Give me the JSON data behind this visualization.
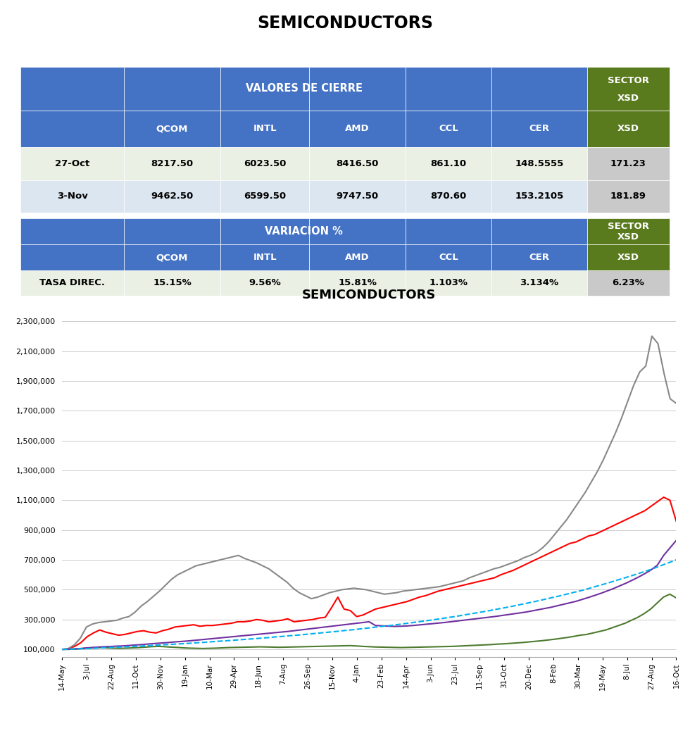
{
  "title_main": "SEMICONDUCTORS",
  "table1_header_label": "VALORES DE CIERRE",
  "table1_sector_label": "SECTOR",
  "table1_sector_sub": "XSD",
  "table2_header_label": "VARIACION %",
  "table2_sector_label": "SECTOR",
  "table2_sector_sub": "XSD",
  "table1_rows": [
    [
      "27-Oct",
      "8217.50",
      "6023.50",
      "8416.50",
      "861.10",
      "148.5555",
      "171.23"
    ],
    [
      "3-Nov",
      "9462.50",
      "6599.50",
      "9747.50",
      "870.60",
      "153.2105",
      "181.89"
    ]
  ],
  "table2_rows": [
    [
      "TASA DIREC.",
      "15.15%",
      "9.56%",
      "15.81%",
      "1.103%",
      "3.134%",
      "6.23%"
    ]
  ],
  "col_headers": [
    "",
    "QCOM",
    "INTL",
    "AMD",
    "CCL",
    "CER",
    "XSD"
  ],
  "blue_color": "#4472C4",
  "green_color": "#5A7A1E",
  "light_green_row": "#EAF0E3",
  "light_blue_row": "#DCE6F1",
  "gray_sector": "#C9C9C9",
  "white": "#FFFFFF",
  "chart_title": "SEMICONDUCTORS",
  "x_labels": [
    "14-May",
    "3-Jul",
    "22-Aug",
    "11-Oct",
    "30-Nov",
    "19-Jan",
    "10-Mar",
    "29-Apr",
    "18-Jun",
    "7-Aug",
    "26-Sep",
    "15-Nov",
    "4-Jan",
    "23-Feb",
    "14-Apr",
    "3-Jun",
    "23-Jul",
    "11-Sep",
    "31-Oct",
    "20-Dec",
    "8-Feb",
    "30-Mar",
    "19-May",
    "8-Jul",
    "27-Aug",
    "16-Oct"
  ],
  "y_ticks": [
    100000,
    300000,
    500000,
    700000,
    900000,
    1100000,
    1300000,
    1500000,
    1700000,
    1900000,
    2100000,
    2300000
  ],
  "y_tick_labels": [
    "100,000",
    "300,000",
    "500,000",
    "700,000",
    "900,000",
    "1,100,000",
    "1,300,000",
    "1,500,000",
    "1,700,000",
    "1,900,000",
    "2,100,000",
    "2,300,000"
  ],
  "series_QCOM": [
    100000,
    105000,
    120000,
    145000,
    185000,
    210000,
    230000,
    215000,
    205000,
    195000,
    200000,
    210000,
    220000,
    225000,
    215000,
    210000,
    225000,
    235000,
    250000,
    255000,
    260000,
    265000,
    255000,
    260000,
    260000,
    265000,
    270000,
    275000,
    285000,
    285000,
    290000,
    300000,
    295000,
    285000,
    290000,
    295000,
    305000,
    285000,
    290000,
    295000,
    300000,
    310000,
    315000,
    380000,
    450000,
    370000,
    360000,
    320000,
    330000,
    350000,
    370000,
    380000,
    390000,
    400000,
    410000,
    420000,
    435000,
    450000,
    460000,
    475000,
    490000,
    500000,
    510000,
    520000,
    530000,
    540000,
    550000,
    560000,
    570000,
    580000,
    600000,
    615000,
    630000,
    650000,
    670000,
    690000,
    710000,
    730000,
    750000,
    770000,
    790000,
    810000,
    820000,
    840000,
    860000,
    870000,
    890000,
    910000,
    930000,
    950000,
    970000,
    990000,
    1010000,
    1030000,
    1060000,
    1090000,
    1120000,
    1100000,
    960000
  ],
  "series_INTL": [
    100000,
    100000,
    102000,
    105000,
    108000,
    110000,
    112000,
    110000,
    108000,
    107000,
    108000,
    110000,
    112000,
    115000,
    118000,
    120000,
    118000,
    115000,
    113000,
    110000,
    108000,
    107000,
    106000,
    107000,
    108000,
    110000,
    112000,
    113000,
    114000,
    115000,
    116000,
    117000,
    116000,
    115000,
    114000,
    115000,
    116000,
    117000,
    118000,
    119000,
    120000,
    121000,
    122000,
    123000,
    124000,
    125000,
    123000,
    120000,
    118000,
    116000,
    115000,
    114000,
    113000,
    112000,
    113000,
    114000,
    115000,
    116000,
    117000,
    118000,
    119000,
    120000,
    122000,
    124000,
    126000,
    128000,
    130000,
    132000,
    135000,
    137000,
    140000,
    143000,
    146000,
    150000,
    154000,
    158000,
    163000,
    168000,
    174000,
    180000,
    187000,
    195000,
    200000,
    210000,
    220000,
    230000,
    245000,
    260000,
    275000,
    295000,
    315000,
    340000,
    370000,
    410000,
    450000,
    470000,
    445000
  ],
  "series_AMD": [
    100000,
    105000,
    130000,
    175000,
    250000,
    270000,
    280000,
    285000,
    290000,
    295000,
    310000,
    320000,
    350000,
    390000,
    420000,
    455000,
    490000,
    530000,
    570000,
    600000,
    620000,
    640000,
    660000,
    670000,
    680000,
    690000,
    700000,
    710000,
    720000,
    730000,
    710000,
    695000,
    680000,
    660000,
    640000,
    610000,
    580000,
    550000,
    510000,
    480000,
    460000,
    440000,
    450000,
    465000,
    480000,
    490000,
    500000,
    505000,
    510000,
    505000,
    500000,
    490000,
    480000,
    470000,
    475000,
    480000,
    490000,
    495000,
    500000,
    505000,
    510000,
    515000,
    520000,
    530000,
    540000,
    550000,
    560000,
    580000,
    595000,
    610000,
    625000,
    640000,
    650000,
    665000,
    680000,
    695000,
    715000,
    730000,
    750000,
    780000,
    820000,
    870000,
    920000,
    970000,
    1030000,
    1090000,
    1150000,
    1220000,
    1290000,
    1370000,
    1460000,
    1550000,
    1650000,
    1760000,
    1870000,
    1960000,
    2000000,
    2200000,
    2150000,
    1950000,
    1780000,
    1750000
  ],
  "series_CCL": [
    100000,
    101000,
    103000,
    106000,
    110000,
    113000,
    116000,
    118000,
    120000,
    122000,
    124000,
    127000,
    130000,
    133000,
    137000,
    140000,
    143000,
    146000,
    150000,
    153000,
    156000,
    160000,
    164000,
    168000,
    172000,
    176000,
    180000,
    184000,
    188000,
    192000,
    196000,
    200000,
    204000,
    208000,
    212000,
    216000,
    220000,
    225000,
    230000,
    235000,
    240000,
    245000,
    250000,
    255000,
    260000,
    265000,
    270000,
    275000,
    280000,
    285000,
    260000,
    258000,
    256000,
    254000,
    255000,
    257000,
    260000,
    264000,
    268000,
    272000,
    276000,
    280000,
    285000,
    290000,
    295000,
    300000,
    305000,
    310000,
    315000,
    320000,
    326000,
    332000,
    338000,
    344000,
    350000,
    358000,
    366000,
    374000,
    382000,
    392000,
    402000,
    412000,
    422000,
    435000,
    448000,
    462000,
    476000,
    492000,
    508000,
    526000,
    544000,
    564000,
    585000,
    608000,
    633000,
    665000,
    730000,
    780000,
    830000
  ],
  "series_CER": [
    100000,
    101000,
    103000,
    105000,
    107000,
    110000,
    113000,
    115000,
    117000,
    120000,
    122000,
    125000,
    128000,
    131000,
    134000,
    137000,
    140000,
    144000,
    147000,
    151000,
    155000,
    158000,
    162000,
    166000,
    170000,
    174000,
    178000,
    183000,
    187000,
    192000,
    196000,
    201000,
    206000,
    211000,
    216000,
    221000,
    227000,
    232000,
    238000,
    244000,
    250000,
    256000,
    262000,
    269000,
    276000,
    283000,
    290000,
    297000,
    305000,
    313000,
    321000,
    330000,
    339000,
    348000,
    357000,
    367000,
    377000,
    387000,
    398000,
    409000,
    420000,
    432000,
    444000,
    456000,
    469000,
    482000,
    495000,
    510000,
    525000,
    540000,
    556000,
    572000,
    588000,
    605000,
    622000,
    640000,
    660000,
    680000,
    700000
  ],
  "line_colors": {
    "QCOM": "#FF0000",
    "INTL": "#4D7B2F",
    "AMD": "#888888",
    "CCL": "#7030A0",
    "CER": "#00B0F0"
  },
  "line_styles": {
    "QCOM": "-",
    "INTL": "-",
    "AMD": "-",
    "CCL": "-",
    "CER": "--"
  },
  "line_widths": {
    "QCOM": 1.5,
    "INTL": 1.5,
    "AMD": 1.5,
    "CCL": 1.5,
    "CER": 1.5
  }
}
